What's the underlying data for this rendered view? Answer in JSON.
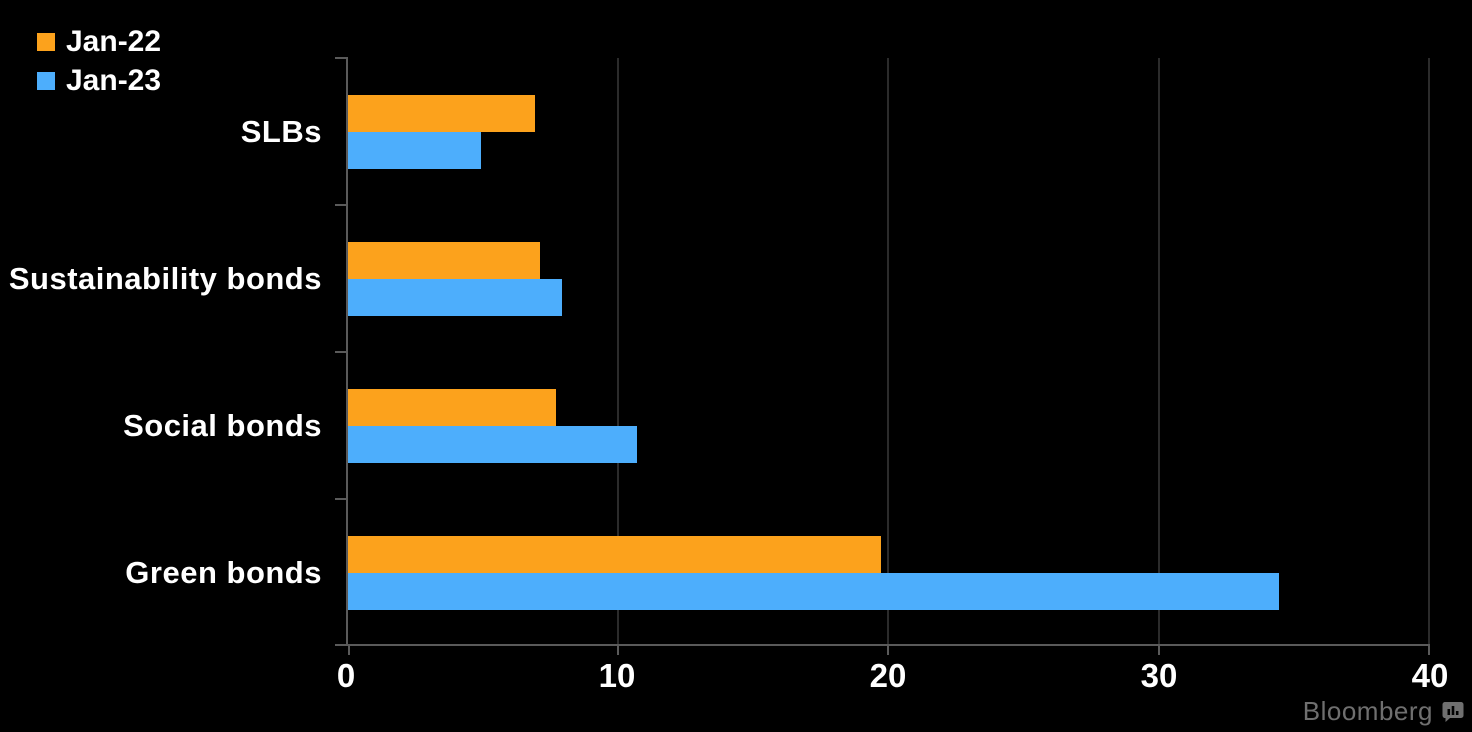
{
  "chart_data": {
    "type": "bar",
    "orientation": "horizontal",
    "categories": [
      "SLBs",
      "Sustainability bonds",
      "Social bonds",
      "Green bonds"
    ],
    "series": [
      {
        "name": "Jan-22",
        "color": "#FCA21C",
        "values": [
          6.9,
          7.1,
          7.7,
          19.7
        ]
      },
      {
        "name": "Jan-23",
        "color": "#4DAEFC",
        "values": [
          4.9,
          7.9,
          10.7,
          34.4
        ]
      }
    ],
    "xlim": [
      0,
      40
    ],
    "xticks": [
      0,
      10,
      20,
      30,
      40
    ],
    "grid": "vertical-gridlines",
    "legend_position": "top-left",
    "background": "#000000"
  },
  "legend": {
    "items": [
      {
        "label": "Jan-22",
        "color": "#FCA21C"
      },
      {
        "label": "Jan-23",
        "color": "#4DAEFC"
      }
    ]
  },
  "branding": {
    "logo_text": "Bloomberg"
  },
  "colors": {
    "background": "#000000",
    "axis": "#5a5a5a",
    "gridline": "#2b2b2b",
    "text": "#ffffff",
    "logo": "#6f6f6f"
  }
}
